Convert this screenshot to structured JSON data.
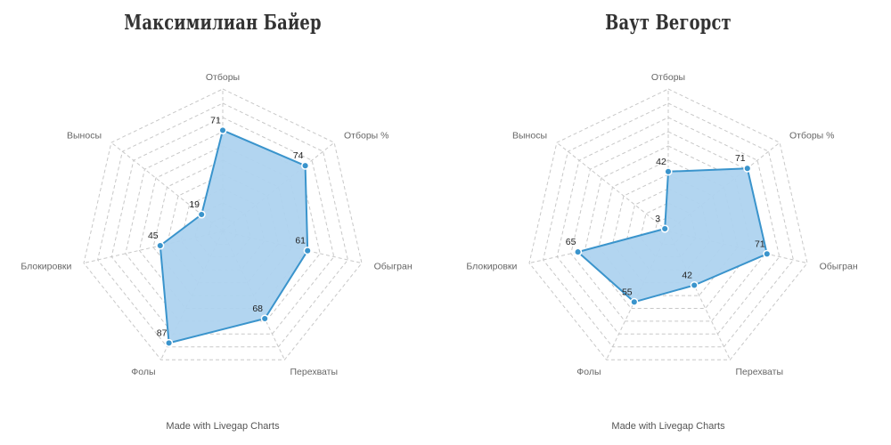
{
  "footer_text": "Made with Livegap Charts",
  "style": {
    "line_color": "#3a94cc",
    "fill_color": "#aed3ef",
    "grid_color": "#c8c8c8"
  },
  "chart_data": [
    {
      "type": "radar",
      "title": "Максимилиан Байер",
      "axes": [
        "Отборы",
        "Отборы %",
        "Обыгран",
        "Перехваты",
        "Фолы",
        "Блокировки",
        "Выносы"
      ],
      "values": [
        71,
        74,
        61,
        68,
        87,
        45,
        19
      ],
      "range": [
        0,
        100
      ],
      "grid_rings": 10,
      "grid": true
    },
    {
      "type": "radar",
      "title": "Ваут Вегорст",
      "axes": [
        "Отборы",
        "Отборы %",
        "Обыгран",
        "Перехваты",
        "Фолы",
        "Блокировки",
        "Выносы"
      ],
      "values": [
        42,
        71,
        71,
        42,
        55,
        65,
        3
      ],
      "range": [
        0,
        100
      ],
      "grid_rings": 10,
      "grid": true
    }
  ]
}
